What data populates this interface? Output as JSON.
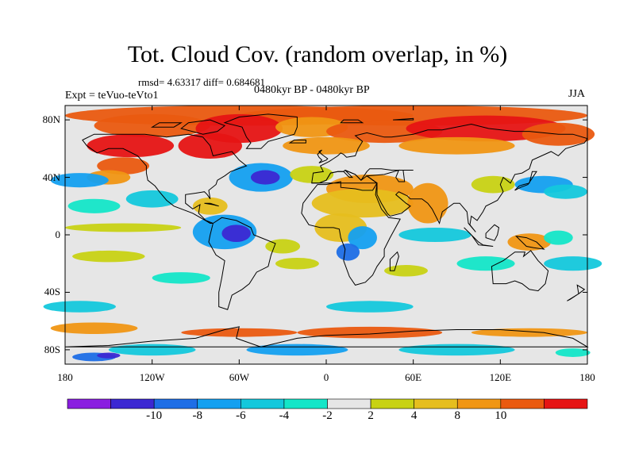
{
  "title": "Tot. Cloud Cov. (random overlap, in %)",
  "stats_line": "rmsd= 4.63317 diff= 0.684681",
  "expt_line": "Expt = teVuo-teVto1",
  "period_line": "0480kyr BP - 0480kyr BP",
  "season": "JJA",
  "lat_ticks": [
    {
      "lat": 80,
      "label": "80N"
    },
    {
      "lat": 40,
      "label": "40N"
    },
    {
      "lat": 0,
      "label": "0"
    },
    {
      "lat": -40,
      "label": "40S"
    },
    {
      "lat": -80,
      "label": "80S"
    }
  ],
  "lon_ticks": [
    {
      "lon": -180,
      "label": "180"
    },
    {
      "lon": -120,
      "label": "120W"
    },
    {
      "lon": -60,
      "label": "60W"
    },
    {
      "lon": 0,
      "label": "0"
    },
    {
      "lon": 60,
      "label": "60E"
    },
    {
      "lon": 120,
      "label": "120E"
    },
    {
      "lon": 180,
      "label": "180"
    }
  ],
  "colorbar": {
    "colors": [
      "#8a1ee0",
      "#3c28d2",
      "#1e6ee6",
      "#14a0f0",
      "#14c8dc",
      "#14e6c8",
      "#e6e6e6",
      "#c8d214",
      "#e6be1e",
      "#f09614",
      "#ea5a10",
      "#e61414"
    ],
    "labels": [
      "-10",
      "-8",
      "-6",
      "-4",
      "-2",
      "2",
      "4",
      "8",
      "10"
    ]
  },
  "colors": {
    "background": "#e6e6e6",
    "coast": "#000000"
  }
}
